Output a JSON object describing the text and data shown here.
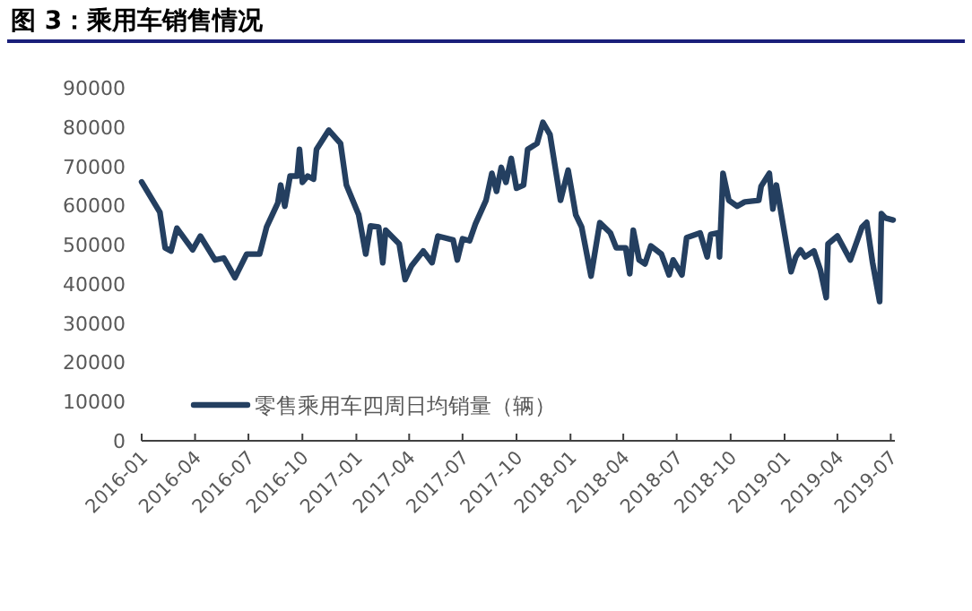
{
  "chart_data": {
    "type": "line",
    "title": "图 3：乘用车销售情况",
    "x": [
      "2016-01-01",
      "2016-02-01",
      "2016-02-10",
      "2016-02-20",
      "2016-03-01",
      "2016-03-28",
      "2016-04-10",
      "2016-05-05",
      "2016-05-20",
      "2016-06-08",
      "2016-06-28",
      "2016-07-20",
      "2016-08-01",
      "2016-08-20",
      "2016-08-25",
      "2016-09-01",
      "2016-09-10",
      "2016-09-22",
      "2016-09-26",
      "2016-10-01",
      "2016-10-10",
      "2016-10-20",
      "2016-10-25",
      "2016-11-15",
      "2016-12-05",
      "2016-12-15",
      "2017-01-05",
      "2017-01-17",
      "2017-01-25",
      "2017-02-08",
      "2017-02-15",
      "2017-02-20",
      "2017-03-15",
      "2017-03-25",
      "2017-04-05",
      "2017-04-25",
      "2017-05-10",
      "2017-05-20",
      "2017-06-15",
      "2017-06-22",
      "2017-07-01",
      "2017-07-13",
      "2017-07-23",
      "2017-08-10",
      "2017-08-20",
      "2017-08-28",
      "2017-09-05",
      "2017-09-13",
      "2017-09-22",
      "2017-10-01",
      "2017-10-13",
      "2017-10-20",
      "2017-11-05",
      "2017-11-15",
      "2017-11-27",
      "2017-12-15",
      "2017-12-28",
      "2018-01-10",
      "2018-01-20",
      "2018-02-05",
      "2018-02-20",
      "2018-03-10",
      "2018-03-20",
      "2018-04-05",
      "2018-04-12",
      "2018-04-18",
      "2018-04-28",
      "2018-05-08",
      "2018-05-18",
      "2018-06-05",
      "2018-06-18",
      "2018-06-25",
      "2018-07-10",
      "2018-07-18",
      "2018-08-10",
      "2018-08-22",
      "2018-08-28",
      "2018-09-10",
      "2018-09-12",
      "2018-09-18",
      "2018-09-28",
      "2018-10-12",
      "2018-10-25",
      "2018-11-18",
      "2018-11-22",
      "2018-12-06",
      "2018-12-12",
      "2018-12-18",
      "2019-01-12",
      "2019-01-20",
      "2019-01-28",
      "2019-02-05",
      "2019-02-20",
      "2019-03-03",
      "2019-03-13",
      "2019-03-16",
      "2019-04-01",
      "2019-04-23",
      "2019-05-13",
      "2019-05-21",
      "2019-05-31",
      "2019-06-12",
      "2019-06-15",
      "2019-06-22",
      "2019-07-05"
    ],
    "series": [
      {
        "name": "零售乘用车四周日均销量（辆）",
        "color": "#243f60",
        "values": [
          66000,
          58300,
          49200,
          48400,
          54200,
          48700,
          52200,
          46100,
          46600,
          41600,
          47600,
          47600,
          54500,
          60600,
          65200,
          59800,
          67500,
          67500,
          74300,
          65900,
          67500,
          66700,
          74300,
          79200,
          75800,
          65200,
          57600,
          47600,
          54800,
          54500,
          45400,
          53700,
          50200,
          41100,
          44600,
          48400,
          45400,
          52200,
          51200,
          46100,
          51500,
          51000,
          55300,
          61300,
          68200,
          63600,
          69700,
          65900,
          72000,
          64400,
          65200,
          74300,
          75800,
          81200,
          78100,
          61300,
          69000,
          57600,
          54500,
          42000,
          55600,
          53000,
          49200,
          49200,
          42600,
          53700,
          46100,
          45100,
          49700,
          47600,
          42300,
          46100,
          42300,
          51800,
          53000,
          46900,
          52600,
          53000,
          46900,
          68200,
          61300,
          59800,
          60900,
          61300,
          64900,
          68200,
          59100,
          65200,
          43100,
          46900,
          48700,
          46900,
          48400,
          43500,
          36500,
          50200,
          52200,
          46100,
          54500,
          55700,
          45400,
          35500,
          57900,
          56800,
          56300
        ]
      }
    ],
    "xlim": [
      "2016-01-01",
      "2019-07-08"
    ],
    "xticks": [
      "2016-01",
      "2016-04",
      "2016-07",
      "2016-10",
      "2017-01",
      "2017-04",
      "2017-07",
      "2017-10",
      "2018-01",
      "2018-04",
      "2018-07",
      "2018-10",
      "2019-01",
      "2019-04",
      "2019-07"
    ],
    "ylim": [
      0,
      90000
    ],
    "yticks": [
      0,
      10000,
      20000,
      30000,
      40000,
      50000,
      60000,
      70000,
      80000,
      90000
    ],
    "grid": false,
    "legend": "bottom"
  }
}
